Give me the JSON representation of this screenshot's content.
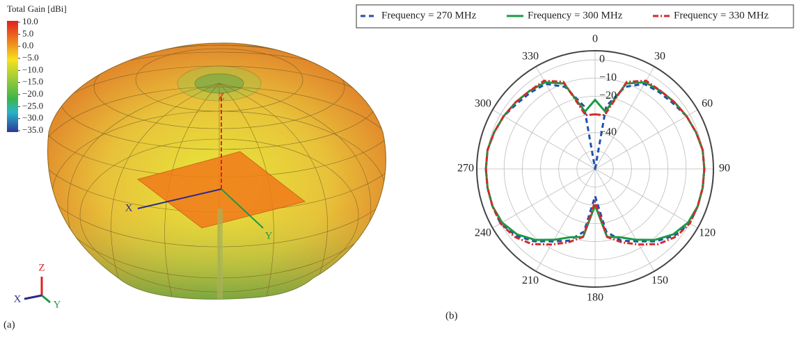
{
  "chart_data": [
    {
      "type": "surface3d",
      "panel_label": "(a)",
      "colorbar": {
        "title": "Total Gain [dBi]",
        "lim": [
          -35,
          10
        ],
        "ticks": [
          {
            "value": 10,
            "label": "10.0"
          },
          {
            "value": 5,
            "label": "5.0"
          },
          {
            "value": 0,
            "label": "0.0"
          },
          {
            "value": -5,
            "label": "−5.0"
          },
          {
            "value": -10,
            "label": "−10.0"
          },
          {
            "value": -15,
            "label": "−15.0"
          },
          {
            "value": -20,
            "label": "−20.0"
          },
          {
            "value": -25,
            "label": "−25.0"
          },
          {
            "value": -30,
            "label": "−30.0"
          },
          {
            "value": -35,
            "label": "−35.0"
          }
        ]
      },
      "axis_labels": {
        "x": "X",
        "y": "Y",
        "z": "Z"
      }
    },
    {
      "type": "polar",
      "panel_label": "(b)",
      "theta": [
        0,
        10,
        20,
        30,
        40,
        50,
        60,
        70,
        80,
        90,
        100,
        110,
        120,
        130,
        140,
        150,
        160,
        170,
        180,
        190,
        200,
        210,
        220,
        230,
        240,
        250,
        260,
        270,
        280,
        290,
        300,
        310,
        320,
        330,
        340,
        350
      ],
      "thetaticks": [
        0,
        30,
        60,
        90,
        120,
        150,
        180,
        210,
        240,
        270,
        300,
        330
      ],
      "rlim": [
        -60,
        5
      ],
      "rgrid": [
        -50,
        -40,
        -30,
        -20,
        -10,
        0
      ],
      "rticks": [
        {
          "value": 0,
          "label": "0"
        },
        {
          "value": -10,
          "label": "−10"
        },
        {
          "value": -20,
          "label": "−20"
        },
        {
          "value": -40,
          "label": "−40"
        }
      ],
      "series": [
        {
          "name": "Frequency = 270 MHz",
          "color": "#1f4fb0",
          "dash": "7,5",
          "values": [
            -60,
            -25,
            -12,
            -6,
            -5,
            -4,
            -2,
            -1,
            0,
            0,
            0,
            0,
            0,
            -3,
            -8,
            -14,
            -18,
            -25,
            -45,
            -25,
            -18,
            -14,
            -8,
            -3,
            0,
            0,
            0,
            0,
            0,
            -1,
            -2,
            -4,
            -5,
            -6,
            -12,
            -25
          ]
        },
        {
          "name": "Frequency = 300 MHz",
          "color": "#1a9a45",
          "dash": "none",
          "values": [
            -22,
            -28,
            -10,
            -5,
            -4,
            -3,
            -2,
            -1,
            0,
            0,
            0,
            0,
            -1,
            -4,
            -9,
            -15,
            -20,
            -22,
            -40,
            -22,
            -20,
            -15,
            -9,
            -4,
            -1,
            0,
            0,
            0,
            0,
            -1,
            -2,
            -3,
            -4,
            -5,
            -10,
            -28
          ]
        },
        {
          "name": "Frequency = 330 MHz",
          "color": "#d42a2a",
          "dash": "8,3,2,3",
          "values": [
            -30,
            -30,
            -9,
            -4,
            -4,
            -3,
            -2,
            -1,
            0,
            0,
            0,
            0,
            0,
            -2,
            -6,
            -12,
            -17,
            -22,
            -42,
            -22,
            -17,
            -12,
            -6,
            -2,
            0,
            0,
            0,
            0,
            0,
            -1,
            -2,
            -3,
            -4,
            -4,
            -9,
            -30
          ]
        }
      ]
    }
  ]
}
